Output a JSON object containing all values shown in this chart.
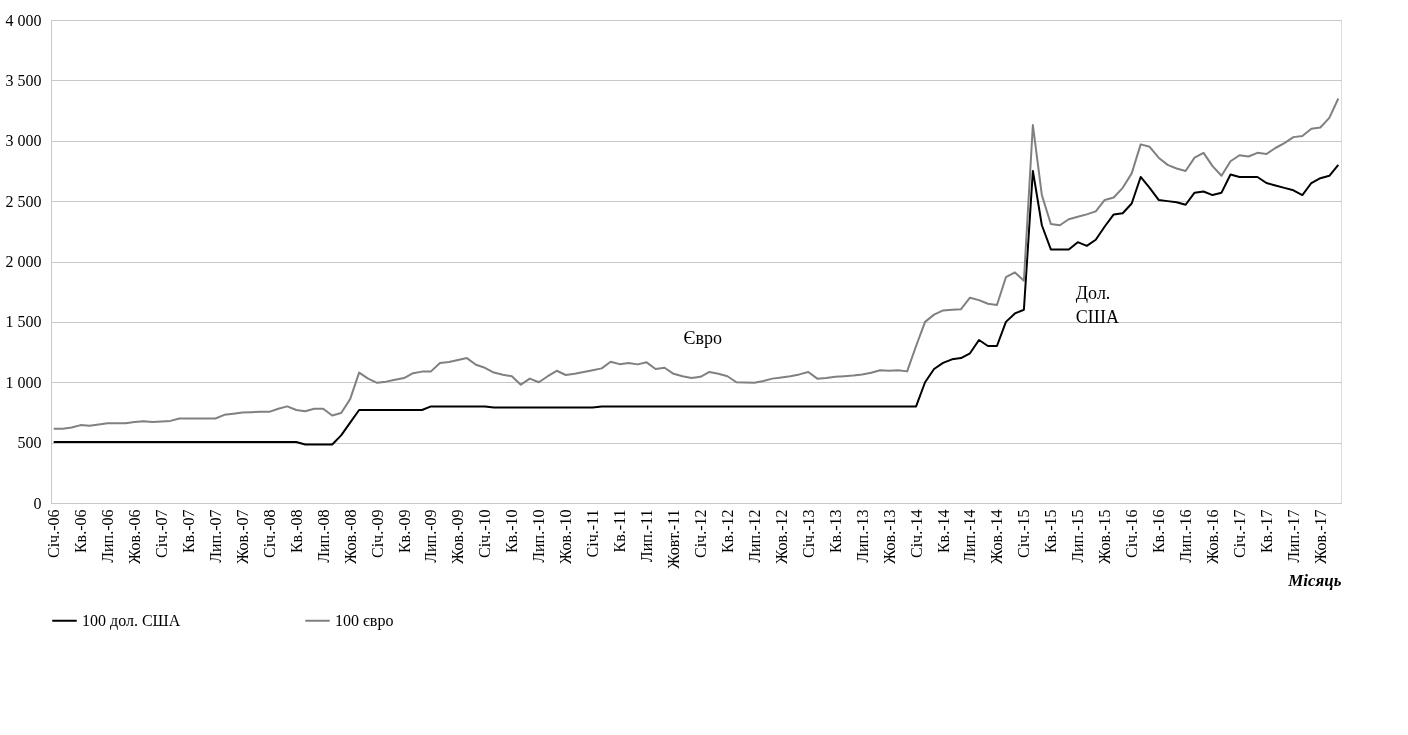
{
  "chart_data": {
    "type": "line",
    "categories": [
      "Січ.-06",
      null,
      null,
      "Кв.-06",
      null,
      null,
      "Лип.-06",
      null,
      null,
      "Жов.-06",
      null,
      null,
      "Січ.-07",
      null,
      null,
      "Кв.-07",
      null,
      null,
      "Лип.-07",
      null,
      null,
      "Жов.-07",
      null,
      null,
      "Січ.-08",
      null,
      null,
      "Кв.-08",
      null,
      null,
      "Лип.-08",
      null,
      null,
      "Жов.-08",
      null,
      null,
      "Січ.-09",
      null,
      null,
      "Кв.-09",
      null,
      null,
      "Лип.-09",
      null,
      null,
      "Жов.-09",
      null,
      null,
      "Січ.-10",
      null,
      null,
      "Кв.-10",
      null,
      null,
      "Лип.-10",
      null,
      null,
      "Жов.-10",
      null,
      null,
      "Січ.-11",
      null,
      null,
      "Кв.-11",
      null,
      null,
      "Лип.-11",
      null,
      null,
      "Жовт.-11",
      null,
      null,
      "Січ.-12",
      null,
      null,
      "Кв.-12",
      null,
      null,
      "Лип.-12",
      null,
      null,
      "Жов.-12",
      null,
      null,
      "Січ.-13",
      null,
      null,
      "Кв.-13",
      null,
      null,
      "Лип.-13",
      null,
      null,
      "Жов.-13",
      null,
      null,
      "Січ.-14",
      null,
      null,
      "Кв.-14",
      null,
      null,
      "Лип.-14",
      null,
      null,
      "Жов.-14",
      null,
      null,
      "Січ.-15",
      null,
      null,
      "Кв.-15",
      null,
      null,
      "Лип.-15",
      null,
      null,
      "Жов.-15",
      null,
      null,
      "Січ.-16",
      null,
      null,
      "Кв.-16",
      null,
      null,
      "Лип.-16",
      null,
      null,
      "Жов.-16",
      null,
      null,
      "Січ.-17",
      null,
      null,
      "Кв.-17",
      null,
      null,
      "Лип.-17",
      null,
      null,
      "Жов.-17",
      null,
      null
    ],
    "series": [
      {
        "name": "100 дол. США",
        "color": "#000000",
        "values": [
          505,
          505,
          505,
          505,
          505,
          505,
          505,
          505,
          505,
          505,
          505,
          505,
          505,
          505,
          505,
          505,
          505,
          505,
          505,
          505,
          505,
          505,
          505,
          505,
          505,
          505,
          505,
          505,
          485,
          485,
          485,
          485,
          560,
          665,
          770,
          770,
          770,
          770,
          770,
          770,
          770,
          770,
          800,
          800,
          800,
          800,
          800,
          800,
          800,
          790,
          790,
          790,
          790,
          790,
          790,
          790,
          790,
          790,
          790,
          790,
          790,
          800,
          800,
          800,
          800,
          800,
          800,
          800,
          800,
          800,
          800,
          800,
          800,
          800,
          800,
          800,
          800,
          800,
          800,
          800,
          800,
          800,
          800,
          800,
          800,
          800,
          800,
          800,
          800,
          800,
          800,
          800,
          800,
          800,
          800,
          800,
          800,
          1000,
          1110,
          1160,
          1190,
          1200,
          1240,
          1350,
          1300,
          1300,
          1500,
          1570,
          1600,
          2750,
          2300,
          2100,
          2100,
          2100,
          2160,
          2130,
          2180,
          2290,
          2390,
          2400,
          2480,
          2700,
          2610,
          2510,
          2500,
          2490,
          2470,
          2570,
          2580,
          2550,
          2570,
          2720,
          2700,
          2700,
          2700,
          2650,
          2630,
          2610,
          2590,
          2550,
          2650,
          2690,
          2710,
          2800
        ]
      },
      {
        "name": "100 євро",
        "color": "#808080",
        "values": [
          615,
          615,
          625,
          645,
          640,
          650,
          660,
          660,
          660,
          670,
          677,
          670,
          675,
          680,
          700,
          700,
          700,
          700,
          700,
          730,
          740,
          750,
          752,
          755,
          755,
          780,
          800,
          770,
          760,
          780,
          780,
          725,
          745,
          860,
          1080,
          1030,
          995,
          1005,
          1021,
          1035,
          1075,
          1088,
          1090,
          1160,
          1168,
          1185,
          1200,
          1145,
          1120,
          1080,
          1062,
          1050,
          980,
          1030,
          1000,
          1050,
          1095,
          1060,
          1070,
          1085,
          1100,
          1115,
          1170,
          1150,
          1160,
          1148,
          1165,
          1110,
          1120,
          1070,
          1050,
          1035,
          1045,
          1085,
          1070,
          1050,
          1000,
          997,
          995,
          1010,
          1030,
          1040,
          1050,
          1065,
          1085,
          1030,
          1035,
          1045,
          1050,
          1055,
          1065,
          1078,
          1100,
          1095,
          1100,
          1090,
          1300,
          1500,
          1560,
          1595,
          1600,
          1605,
          1700,
          1680,
          1650,
          1640,
          1870,
          1910,
          1840,
          3130,
          2550,
          2310,
          2300,
          2350,
          2370,
          2390,
          2415,
          2510,
          2530,
          2610,
          2730,
          2970,
          2950,
          2860,
          2800,
          2770,
          2750,
          2860,
          2900,
          2790,
          2710,
          2830,
          2880,
          2870,
          2900,
          2890,
          2940,
          2980,
          3030,
          3040,
          3100,
          3110,
          3190,
          3350
        ]
      }
    ],
    "ylim": [
      0,
      4000
    ],
    "yticks": [
      0,
      500,
      {
        "value": 1000,
        "label": "1 000"
      },
      {
        "value": 1500,
        "label": "1 500"
      },
      {
        "value": 2000,
        "label": "2 000"
      },
      {
        "value": 2500,
        "label": "2 500"
      },
      {
        "value": 3000,
        "label": "3 000"
      },
      {
        "value": 3500,
        "label": "3 500"
      },
      {
        "value": 4000,
        "label": "4 000"
      }
    ],
    "xlabel": "Місяць",
    "grid": "y",
    "legend": "bottom",
    "line_style": "solid",
    "marker": "none",
    "annotations": [
      {
        "text": "Євро",
        "x": "Жовт.-11",
        "y": 1070
      },
      {
        "text": "Дол.\nСША",
        "x": "Кв.-15",
        "y": 2100
      }
    ]
  }
}
